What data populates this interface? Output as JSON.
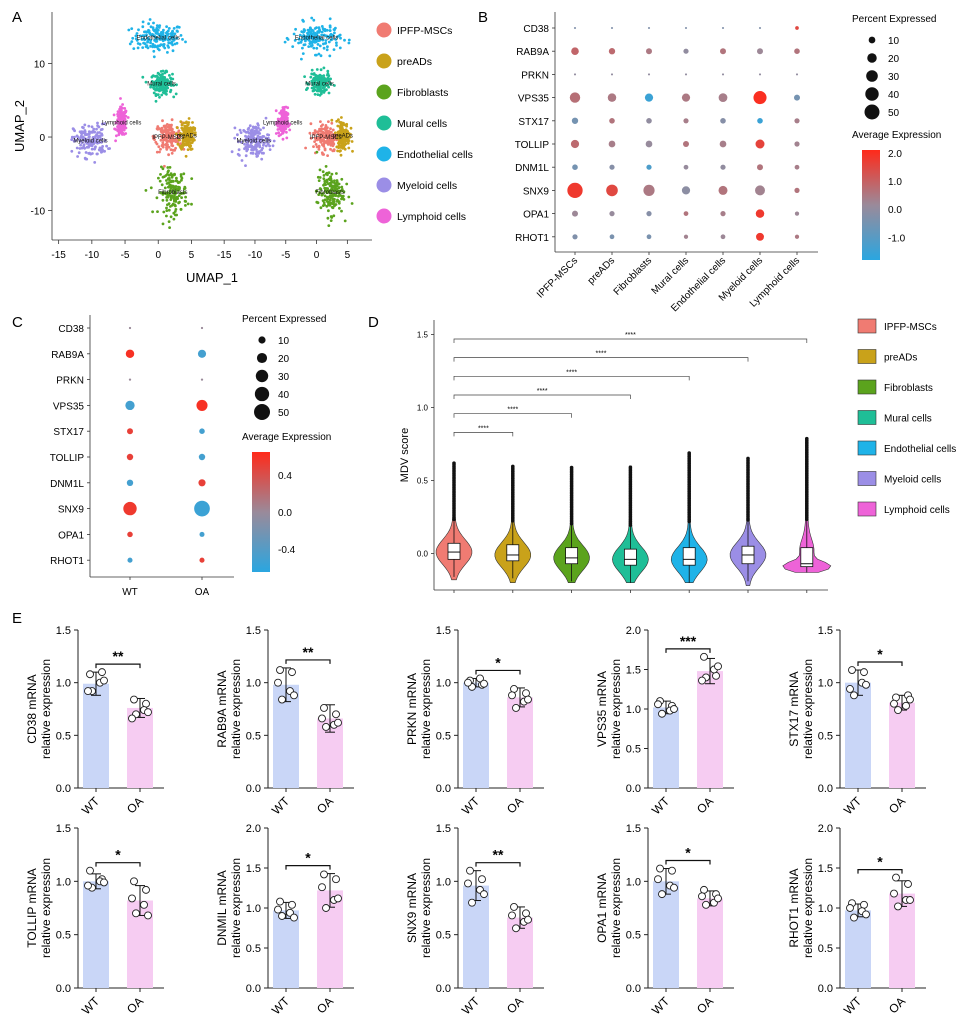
{
  "colors": {
    "IPFP-MSCs": "#f07b72",
    "preADs": "#c9a21a",
    "Fibroblasts": "#5ba31d",
    "Mural cells": "#1fbe97",
    "Endothelial cells": "#1fb3e8",
    "Myeloid cells": "#9b8ee6",
    "Lymphoid cells": "#ee63d8",
    "wt_bar": "#c9d6f7",
    "oa_bar": "#f6ccf2",
    "expr_high": "#ff2a1a",
    "expr_mid": "#9a8a9a",
    "expr_low": "#2aa6e0"
  },
  "panels": {
    "A": "A",
    "B": "B",
    "C": "C",
    "D": "D",
    "E": "E"
  },
  "chart_data": [
    {
      "id": "A",
      "type": "scatter",
      "xlabel": "UMAP_1",
      "ylabel": "UMAP_2",
      "xticks": [
        "-15",
        "-10",
        "-5",
        "0",
        "5"
      ],
      "yticks": [
        "10",
        "0",
        "-10"
      ],
      "xlim": [
        -16,
        9
      ],
      "ylim": [
        -14,
        17
      ],
      "clusters": [
        {
          "name": "Endothelial cells",
          "label": "Endothelial cells",
          "center": [
            0,
            13.5
          ],
          "spread": [
            4.3,
            2.2
          ]
        },
        {
          "name": "Mural cells",
          "label": "Mural cells",
          "center": [
            0.5,
            7.3
          ],
          "spread": [
            1.8,
            1.6
          ]
        },
        {
          "name": "Lymphoid cells",
          "label": "Lymphoid cells",
          "center": [
            -5.5,
            2
          ],
          "spread": [
            0.9,
            2.2
          ]
        },
        {
          "name": "IPFP-MSCs",
          "label": "IPFP-MSCs",
          "center": [
            1.5,
            0
          ],
          "spread": [
            2.2,
            2.2
          ]
        },
        {
          "name": "preADs",
          "label": "preADs",
          "center": [
            4.3,
            0.2
          ],
          "spread": [
            1.2,
            2.2
          ]
        },
        {
          "name": "Myeloid cells",
          "label": "Myeloid cells",
          "center": [
            -10.2,
            -0.5
          ],
          "spread": [
            2.8,
            2.5
          ]
        },
        {
          "name": "Fibroblasts",
          "label": "Fibroblasts",
          "center": [
            2.2,
            -7.5
          ],
          "spread": [
            2.4,
            3.4
          ]
        }
      ],
      "legend": [
        "IPFP-MSCs",
        "preADs",
        "Fibroblasts",
        "Mural cells",
        "Endothelial cells",
        "Myeloid cells",
        "Lymphoid cells"
      ]
    },
    {
      "id": "B",
      "type": "scatter",
      "genes": [
        "CD38",
        "RAB9A",
        "PRKN",
        "VPS35",
        "STX17",
        "TOLLIP",
        "DNM1L",
        "SNX9",
        "OPA1",
        "RHOT1"
      ],
      "groups": [
        "IPFP-MSCs",
        "preADs",
        "Fibroblasts",
        "Mural cells",
        "Endothelial cells",
        "Myeloid cells",
        "Lymphoid cells"
      ],
      "pct": [
        [
          1,
          1,
          1,
          1,
          1,
          1,
          3
        ],
        [
          13,
          9,
          8,
          6,
          8,
          8,
          7
        ],
        [
          1,
          1,
          1,
          1,
          1,
          1,
          1
        ],
        [
          24,
          16,
          15,
          15,
          17,
          38,
          8
        ],
        [
          9,
          7,
          7,
          6,
          7,
          7,
          6
        ],
        [
          15,
          10,
          10,
          8,
          10,
          18,
          6
        ],
        [
          7,
          6,
          6,
          5,
          6,
          8,
          5
        ],
        [
          52,
          30,
          28,
          15,
          18,
          22,
          6
        ],
        [
          8,
          6,
          6,
          5,
          6,
          16,
          4
        ],
        [
          6,
          5,
          5,
          4,
          5,
          14,
          4
        ]
      ],
      "avg": [
        [
          -0.3,
          -0.3,
          -0.3,
          -0.3,
          -0.3,
          -0.3,
          1.5
        ],
        [
          0.9,
          0.8,
          0.5,
          0.0,
          0.6,
          0.2,
          0.6
        ],
        [
          0,
          0,
          0,
          0,
          0,
          0,
          0
        ],
        [
          0.7,
          0.5,
          -1.5,
          0.5,
          0.4,
          2.0,
          -0.5
        ],
        [
          -0.5,
          0.6,
          0.0,
          0.4,
          -0.2,
          -1.5,
          0.4
        ],
        [
          0.8,
          0.4,
          0.1,
          0.6,
          0.4,
          1.6,
          0.3
        ],
        [
          -0.5,
          -0.2,
          -1.2,
          0.1,
          0.0,
          0.6,
          0.4
        ],
        [
          1.8,
          1.5,
          0.5,
          -0.1,
          0.6,
          0.3,
          0.6
        ],
        [
          0.2,
          0.1,
          -0.2,
          0.6,
          0.4,
          1.8,
          0.2
        ],
        [
          -0.3,
          -0.4,
          -0.4,
          0.3,
          0.2,
          1.8,
          0.5
        ]
      ],
      "size_legend": {
        "title": "Percent Expressed",
        "values": [
          10,
          20,
          30,
          40,
          50
        ]
      },
      "color_legend": {
        "title": "Average Expression",
        "ticks": [
          "2.0",
          "1.0",
          "0.0",
          "-1.0"
        ],
        "range": [
          -1.8,
          2.1
        ]
      }
    },
    {
      "id": "C",
      "type": "scatter",
      "genes": [
        "CD38",
        "RAB9A",
        "PRKN",
        "VPS35",
        "STX17",
        "TOLLIP",
        "DNM1L",
        "SNX9",
        "OPA1",
        "RHOT1"
      ],
      "groups": [
        "WT",
        "OA"
      ],
      "pct": [
        [
          1,
          1
        ],
        [
          14,
          13
        ],
        [
          1,
          1
        ],
        [
          17,
          24
        ],
        [
          7,
          6
        ],
        [
          8,
          8
        ],
        [
          8,
          10
        ],
        [
          35,
          48
        ],
        [
          6,
          5
        ],
        [
          5,
          5
        ]
      ],
      "avg": [
        [
          0,
          0
        ],
        [
          0.6,
          -0.5
        ],
        [
          0,
          0
        ],
        [
          -0.5,
          0.6
        ],
        [
          0.5,
          -0.5
        ],
        [
          0.5,
          -0.5
        ],
        [
          -0.5,
          0.5
        ],
        [
          0.55,
          -0.55
        ],
        [
          0.5,
          -0.5
        ],
        [
          -0.5,
          0.5
        ]
      ],
      "size_legend": {
        "title": "Percent Expressed",
        "values": [
          10,
          20,
          30,
          40,
          50
        ]
      },
      "color_legend": {
        "title": "Average Expression",
        "ticks": [
          "0.4",
          "0.0",
          "-0.4"
        ],
        "range": [
          -0.65,
          0.65
        ]
      }
    },
    {
      "id": "D",
      "type": "violin",
      "ylabel": "MDV score",
      "ylim": [
        -0.25,
        1.6
      ],
      "yticks": [
        "0.0",
        "0.5",
        "1.0",
        "1.5"
      ],
      "groups": [
        "IPFP-MSCs",
        "preADs",
        "Fibroblasts",
        "Mural cells",
        "Endothelial cells",
        "Myeloid cells",
        "Lymphoid cells"
      ],
      "stats": [
        {
          "q1": -0.04,
          "median": 0.01,
          "q3": 0.07,
          "min": -0.18,
          "max": 0.62
        },
        {
          "q1": -0.05,
          "median": -0.01,
          "q3": 0.06,
          "min": -0.2,
          "max": 0.6
        },
        {
          "q1": -0.07,
          "median": -0.03,
          "q3": 0.04,
          "min": -0.2,
          "max": 0.59
        },
        {
          "q1": -0.08,
          "median": -0.04,
          "q3": 0.03,
          "min": -0.2,
          "max": 0.6
        },
        {
          "q1": -0.08,
          "median": -0.04,
          "q3": 0.04,
          "min": -0.2,
          "max": 0.69
        },
        {
          "q1": -0.07,
          "median": -0.01,
          "q3": 0.05,
          "min": -0.22,
          "max": 0.66
        },
        {
          "q1": -0.09,
          "median": -0.07,
          "q3": 0.04,
          "min": -0.13,
          "max": 0.79
        }
      ],
      "comparisons": [
        {
          "from": 0,
          "to": 1,
          "label": "****"
        },
        {
          "from": 0,
          "to": 2,
          "label": "****"
        },
        {
          "from": 0,
          "to": 3,
          "label": "****"
        },
        {
          "from": 0,
          "to": 4,
          "label": "****"
        },
        {
          "from": 0,
          "to": 5,
          "label": "****"
        },
        {
          "from": 0,
          "to": 6,
          "label": "****"
        }
      ],
      "legend": [
        "IPFP-MSCs",
        "preADs",
        "Fibroblasts",
        "Mural cells",
        "Endothelial cells",
        "Myeloid cells",
        "Lymphoid cells"
      ]
    },
    {
      "id": "E",
      "type": "bar",
      "categories": [
        "WT",
        "OA"
      ],
      "panels": [
        {
          "ylabel": "CD38 mRNA",
          "ylabel2": "relative expression",
          "ylim": [
            0,
            1.5
          ],
          "yticks": [
            "0.0",
            "0.5",
            "1.0",
            "1.5"
          ],
          "values": [
            0.99,
            0.76
          ],
          "errors": [
            0.11,
            0.09
          ],
          "sig": "**",
          "points": [
            [
              1.08,
              1.1,
              0.92,
              1.0,
              0.92,
              1.02
            ],
            [
              0.84,
              0.8,
              0.7,
              0.74,
              0.66,
              0.72
            ]
          ]
        },
        {
          "ylabel": "RAB9A mRNA",
          "ylabel2": "relative expression",
          "ylim": [
            0,
            1.5
          ],
          "yticks": [
            "0.0",
            "0.5",
            "1.0",
            "1.5"
          ],
          "values": [
            0.98,
            0.66
          ],
          "errors": [
            0.16,
            0.13
          ],
          "sig": "**",
          "points": [
            [
              1.12,
              1.1,
              0.84,
              0.92,
              1.0,
              0.88
            ],
            [
              0.76,
              0.7,
              0.58,
              0.6,
              0.66,
              0.62
            ]
          ]
        },
        {
          "ylabel": "PRKN mRNA",
          "ylabel2": "relative expression",
          "ylim": [
            0,
            1.5
          ],
          "yticks": [
            "0.0",
            "0.5",
            "1.0",
            "1.5"
          ],
          "values": [
            1.0,
            0.86
          ],
          "errors": [
            0.04,
            0.09
          ],
          "sig": "*",
          "points": [
            [
              1.02,
              0.98,
              0.96,
              1.04,
              1.0,
              0.99
            ],
            [
              0.94,
              0.9,
              0.76,
              0.82,
              0.88,
              0.84
            ]
          ]
        },
        {
          "ylabel": "VPS35 mRNA",
          "ylabel2": "relative expression",
          "ylim": [
            0,
            2.0
          ],
          "yticks": [
            "0.0",
            "0.5",
            "1.0",
            "1.5",
            "2.0"
          ],
          "values": [
            1.02,
            1.48
          ],
          "errors": [
            0.08,
            0.16
          ],
          "sig": "***",
          "points": [
            [
              1.1,
              1.04,
              0.94,
              0.98,
              1.06,
              1.0
            ],
            [
              1.66,
              1.42,
              1.4,
              1.5,
              1.36,
              1.54
            ]
          ]
        },
        {
          "ylabel": "STX17 mRNA",
          "ylabel2": "relative expression",
          "ylim": [
            0,
            1.5
          ],
          "yticks": [
            "0.0",
            "0.5",
            "1.0",
            "1.5"
          ],
          "values": [
            1.0,
            0.81
          ],
          "errors": [
            0.12,
            0.07
          ],
          "sig": "*",
          "points": [
            [
              1.12,
              1.1,
              0.88,
              1.0,
              0.94,
              0.98
            ],
            [
              0.86,
              0.88,
              0.74,
              0.78,
              0.8,
              0.84
            ]
          ]
        },
        {
          "ylabel": "TOLLIP mRNA",
          "ylabel2": "relative expression",
          "ylim": [
            0,
            1.5
          ],
          "yticks": [
            "0.0",
            "0.5",
            "1.0",
            "1.5"
          ],
          "values": [
            1.0,
            0.82
          ],
          "errors": [
            0.07,
            0.14
          ],
          "sig": "*",
          "points": [
            [
              1.1,
              1.02,
              0.94,
              1.0,
              0.96,
              0.99
            ],
            [
              1.0,
              0.92,
              0.7,
              0.78,
              0.84,
              0.68
            ]
          ]
        },
        {
          "ylabel": "DNMIL mRNA",
          "ylabel2": "relative expression",
          "ylim": [
            0,
            2.0
          ],
          "yticks": [
            "0.0",
            "0.5",
            "1.0",
            "1.5",
            "2.0"
          ],
          "values": [
            0.97,
            1.22
          ],
          "errors": [
            0.1,
            0.21
          ],
          "sig": "*",
          "points": [
            [
              1.08,
              1.04,
              0.9,
              0.94,
              0.98,
              0.88
            ],
            [
              1.42,
              1.36,
              1.0,
              1.1,
              1.26,
              1.12
            ]
          ]
        },
        {
          "ylabel": "SNX9 mRNA",
          "ylabel2": "relative expression",
          "ylim": [
            0,
            1.5
          ],
          "yticks": [
            "0.0",
            "0.5",
            "1.0",
            "1.5"
          ],
          "values": [
            0.96,
            0.66
          ],
          "errors": [
            0.14,
            0.1
          ],
          "sig": "**",
          "points": [
            [
              1.1,
              1.02,
              0.8,
              0.92,
              0.98,
              0.88
            ],
            [
              0.76,
              0.7,
              0.56,
              0.62,
              0.68,
              0.64
            ]
          ]
        },
        {
          "ylabel": "OPA1 mRNA",
          "ylabel2": "relative expression",
          "ylim": [
            0,
            1.5
          ],
          "yticks": [
            "0.0",
            "0.5",
            "1.0",
            "1.5"
          ],
          "values": [
            1.0,
            0.84
          ],
          "errors": [
            0.12,
            0.07
          ],
          "sig": "*",
          "points": [
            [
              1.12,
              1.1,
              0.88,
              0.96,
              1.02,
              0.94
            ],
            [
              0.92,
              0.88,
              0.78,
              0.8,
              0.86,
              0.84
            ]
          ]
        },
        {
          "ylabel": "RHOT1 mRNA",
          "ylabel2": "relative expression",
          "ylim": [
            0,
            2.0
          ],
          "yticks": [
            "0.0",
            "0.5",
            "1.0",
            "1.5",
            "2.0"
          ],
          "values": [
            0.97,
            1.18
          ],
          "errors": [
            0.08,
            0.16
          ],
          "sig": "*",
          "points": [
            [
              1.06,
              1.04,
              0.88,
              0.96,
              1.0,
              0.92
            ],
            [
              1.38,
              1.3,
              1.02,
              1.1,
              1.18,
              1.1
            ]
          ]
        }
      ]
    }
  ]
}
